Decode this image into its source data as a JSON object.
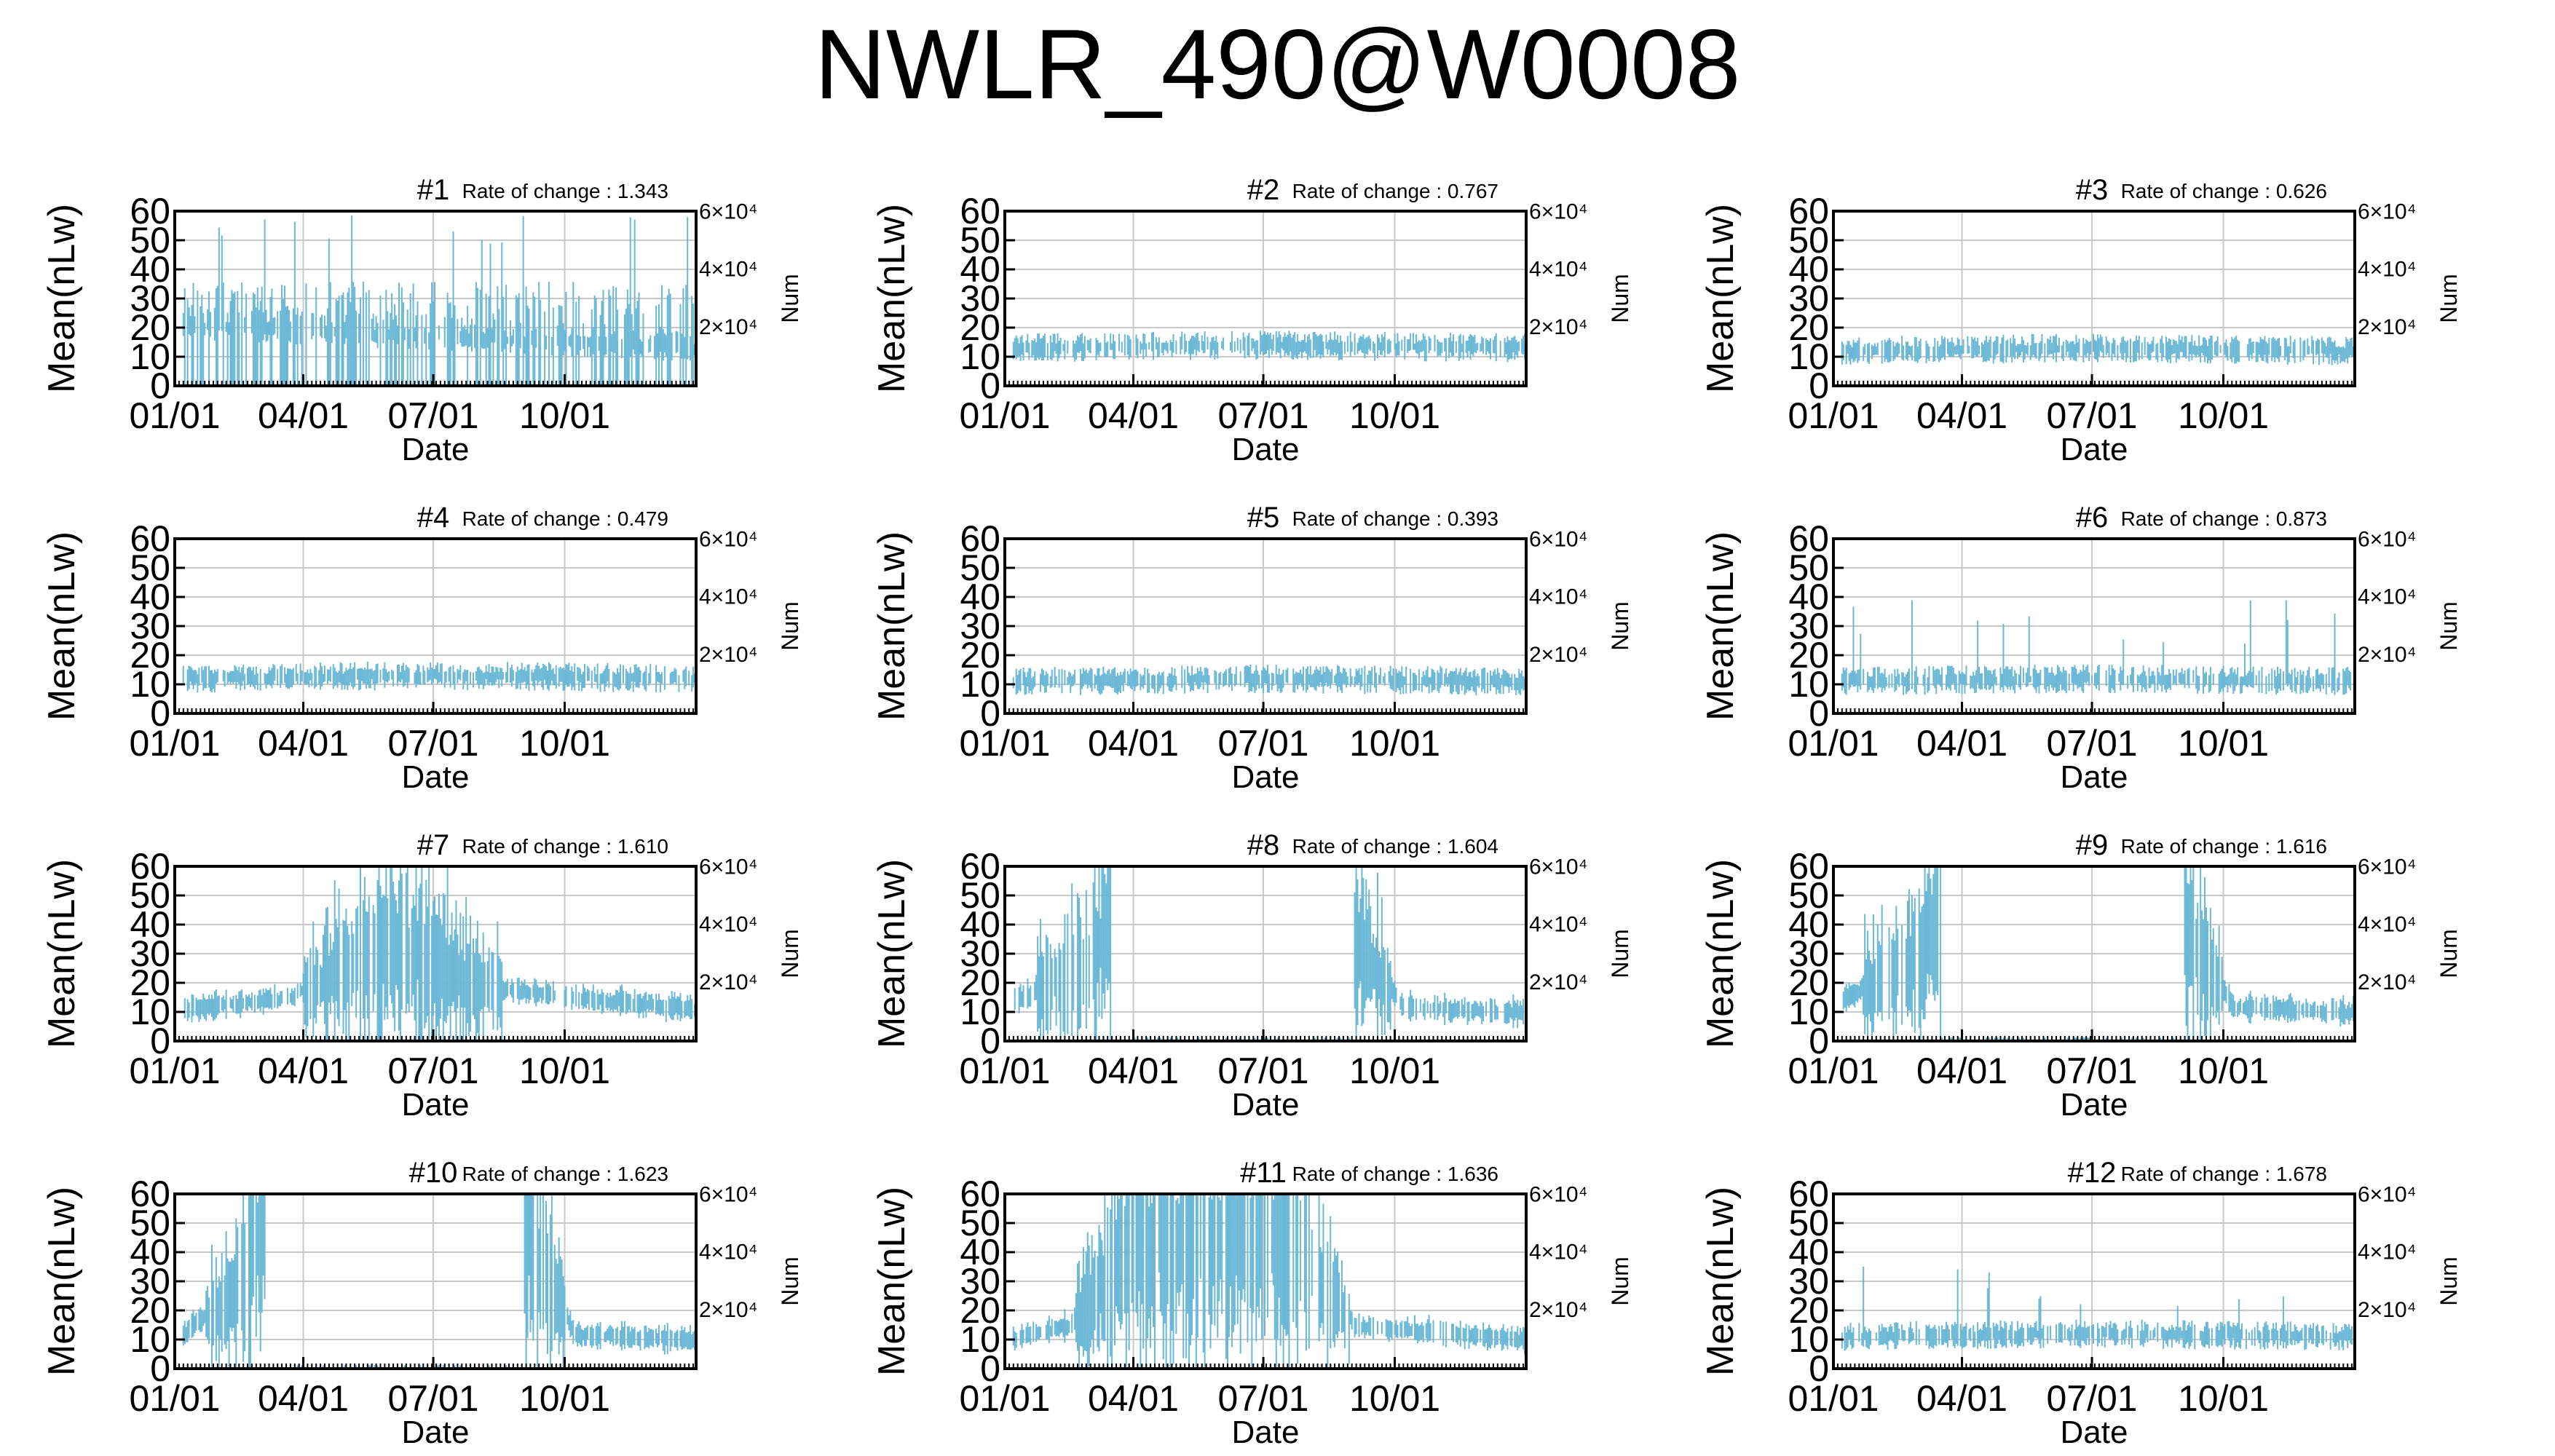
{
  "title": "NWLR_490@W0008",
  "style": {
    "bar_color": "#6bb8d6",
    "grid_color": "#c8c8c8",
    "axis_color": "#000000"
  },
  "axes": {
    "ylabel": "Mean(nLw)",
    "xlabel": "Date",
    "y2label": "Num",
    "yticks": [
      "0",
      "10",
      "20",
      "30",
      "40",
      "50",
      "60"
    ],
    "y2ticks": [
      "2×10⁴",
      "4×10⁴",
      "6×10⁴"
    ],
    "xticks": [
      "01/01",
      "04/01",
      "07/01",
      "10/01"
    ]
  },
  "chart_data": [
    {
      "type": "bar",
      "title": "#1",
      "rate_label": "Rate of change : 1.343",
      "ylim": [
        0,
        60
      ],
      "xlim_days": [
        0,
        365
      ],
      "y2lim": [
        0,
        60000
      ],
      "pattern": "erratic",
      "series": [
        {
          "name": "Mean(nLw)",
          "profile": [
            [
              0,
              22
            ],
            [
              365,
              14
            ]
          ]
        }
      ]
    },
    {
      "type": "bar",
      "title": "#2",
      "rate_label": "Rate of change : 0.767",
      "ylim": [
        0,
        60
      ],
      "xlim_days": [
        0,
        365
      ],
      "y2lim": [
        0,
        60000
      ],
      "pattern": "stable",
      "series": [
        {
          "name": "Mean(nLw)",
          "profile": [
            [
              0,
              13
            ],
            [
              180,
              14
            ],
            [
              365,
              13
            ]
          ]
        }
      ]
    },
    {
      "type": "bar",
      "title": "#3",
      "rate_label": "Rate of change : 0.626",
      "ylim": [
        0,
        60
      ],
      "xlim_days": [
        0,
        365
      ],
      "y2lim": [
        0,
        60000
      ],
      "pattern": "stable",
      "series": [
        {
          "name": "Mean(nLw)",
          "profile": [
            [
              0,
              12
            ],
            [
              180,
              13
            ],
            [
              365,
              12
            ]
          ]
        }
      ]
    },
    {
      "type": "bar",
      "title": "#4",
      "rate_label": "Rate of change : 0.479",
      "ylim": [
        0,
        60
      ],
      "xlim_days": [
        0,
        365
      ],
      "y2lim": [
        0,
        60000
      ],
      "pattern": "stable",
      "series": [
        {
          "name": "Mean(nLw)",
          "profile": [
            [
              0,
              12
            ],
            [
              180,
              13
            ],
            [
              365,
              12
            ]
          ]
        }
      ]
    },
    {
      "type": "bar",
      "title": "#5",
      "rate_label": "Rate of change : 0.393",
      "ylim": [
        0,
        60
      ],
      "xlim_days": [
        0,
        365
      ],
      "y2lim": [
        0,
        60000
      ],
      "pattern": "stable",
      "series": [
        {
          "name": "Mean(nLw)",
          "profile": [
            [
              0,
              11
            ],
            [
              180,
              12
            ],
            [
              365,
              11
            ]
          ]
        }
      ]
    },
    {
      "type": "bar",
      "title": "#6",
      "rate_label": "Rate of change : 0.873",
      "ylim": [
        0,
        60
      ],
      "xlim_days": [
        0,
        365
      ],
      "y2lim": [
        0,
        60000
      ],
      "pattern": "stable-spikes",
      "series": [
        {
          "name": "Mean(nLw)",
          "profile": [
            [
              0,
              11
            ],
            [
              180,
              12
            ],
            [
              365,
              11
            ]
          ]
        }
      ]
    },
    {
      "type": "bar",
      "title": "#7",
      "rate_label": "Rate of change : 1.610",
      "ylim": [
        0,
        60
      ],
      "xlim_days": [
        0,
        365
      ],
      "y2lim": [
        0,
        60000
      ],
      "pattern": "spiky-mid",
      "series": [
        {
          "name": "Mean(nLw)",
          "profile": [
            [
              0,
              11
            ],
            [
              80,
              15
            ],
            [
              150,
              35
            ],
            [
              230,
              18
            ],
            [
              365,
              11
            ]
          ]
        }
      ]
    },
    {
      "type": "bar",
      "title": "#8",
      "rate_label": "Rate of change : 1.604",
      "ylim": [
        0,
        60
      ],
      "xlim_days": [
        0,
        365
      ],
      "y2lim": [
        0,
        60000
      ],
      "pattern": "gap",
      "gap_days": [
        75,
        245
      ],
      "series": [
        {
          "name": "Mean(nLw)",
          "profile": [
            [
              0,
              12
            ],
            [
              60,
              28
            ],
            [
              75,
              45
            ],
            [
              245,
              35
            ],
            [
              280,
              12
            ],
            [
              365,
              10
            ]
          ]
        }
      ]
    },
    {
      "type": "bar",
      "title": "#9",
      "rate_label": "Rate of change : 1.616",
      "ylim": [
        0,
        60
      ],
      "xlim_days": [
        0,
        365
      ],
      "y2lim": [
        0,
        60000
      ],
      "pattern": "gap",
      "gap_days": [
        75,
        245
      ],
      "series": [
        {
          "name": "Mean(nLw)",
          "profile": [
            [
              0,
              12
            ],
            [
              60,
              30
            ],
            [
              75,
              45
            ],
            [
              245,
              40
            ],
            [
              280,
              12
            ],
            [
              365,
              10
            ]
          ]
        }
      ]
    },
    {
      "type": "bar",
      "title": "#10",
      "rate_label": "Rate of change : 1.623",
      "ylim": [
        0,
        60
      ],
      "xlim_days": [
        0,
        365
      ],
      "y2lim": [
        0,
        60000
      ],
      "pattern": "gap",
      "gap_days": [
        65,
        245
      ],
      "series": [
        {
          "name": "Mean(nLw)",
          "profile": [
            [
              0,
              10
            ],
            [
              40,
              25
            ],
            [
              65,
              55
            ],
            [
              245,
              50
            ],
            [
              280,
              12
            ],
            [
              365,
              10
            ]
          ]
        }
      ]
    },
    {
      "type": "bar",
      "title": "#11",
      "rate_label": "Rate of change : 1.636",
      "ylim": [
        0,
        60
      ],
      "xlim_days": [
        0,
        365
      ],
      "y2lim": [
        0,
        60000
      ],
      "pattern": "spiky-mid",
      "series": [
        {
          "name": "Mean(nLw)",
          "profile": [
            [
              0,
              10
            ],
            [
              45,
              15
            ],
            [
              90,
              45
            ],
            [
              200,
              50
            ],
            [
              245,
              15
            ],
            [
              365,
              10
            ]
          ]
        }
      ]
    },
    {
      "type": "bar",
      "title": "#12",
      "rate_label": "Rate of change : 1.678",
      "ylim": [
        0,
        60
      ],
      "xlim_days": [
        0,
        365
      ],
      "y2lim": [
        0,
        60000
      ],
      "pattern": "stable-spikes",
      "series": [
        {
          "name": "Mean(nLw)",
          "profile": [
            [
              0,
              11
            ],
            [
              180,
              12
            ],
            [
              365,
              11
            ]
          ]
        }
      ]
    }
  ]
}
